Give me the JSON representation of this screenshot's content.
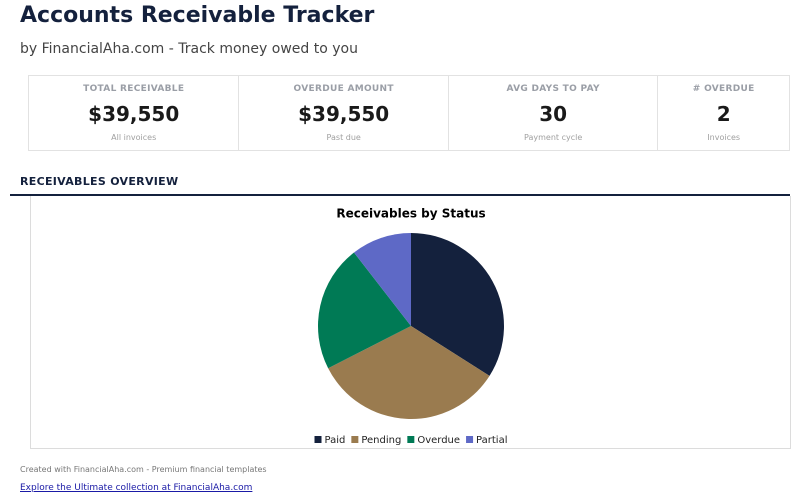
{
  "header": {
    "title": "Accounts Receivable Tracker",
    "subtitle": "by FinancialAha.com - Track money owed to you"
  },
  "kpis": [
    {
      "label": "TOTAL RECEIVABLE",
      "value": "$39,550",
      "note": "All invoices"
    },
    {
      "label": "OVERDUE AMOUNT",
      "value": "$39,550",
      "note": "Past due"
    },
    {
      "label": "AVG DAYS TO PAY",
      "value": "30",
      "note": "Payment cycle"
    },
    {
      "label": "# OVERDUE",
      "value": "2",
      "note": "Invoices"
    }
  ],
  "section": {
    "title": "RECEIVABLES OVERVIEW"
  },
  "chart_data": {
    "type": "pie",
    "title": "Receivables by Status",
    "categories": [
      "Paid",
      "Pending",
      "Overdue",
      "Partial"
    ],
    "values": [
      34,
      33.5,
      22,
      10.5
    ],
    "colors": [
      "#14213d",
      "#9a7b4f",
      "#007a55",
      "#5e69c6"
    ],
    "legend": "bottom"
  },
  "footer": {
    "credit": "Created with FinancialAha.com - Premium financial templates",
    "link": "Explore the Ultimate collection at FinancialAha.com"
  }
}
